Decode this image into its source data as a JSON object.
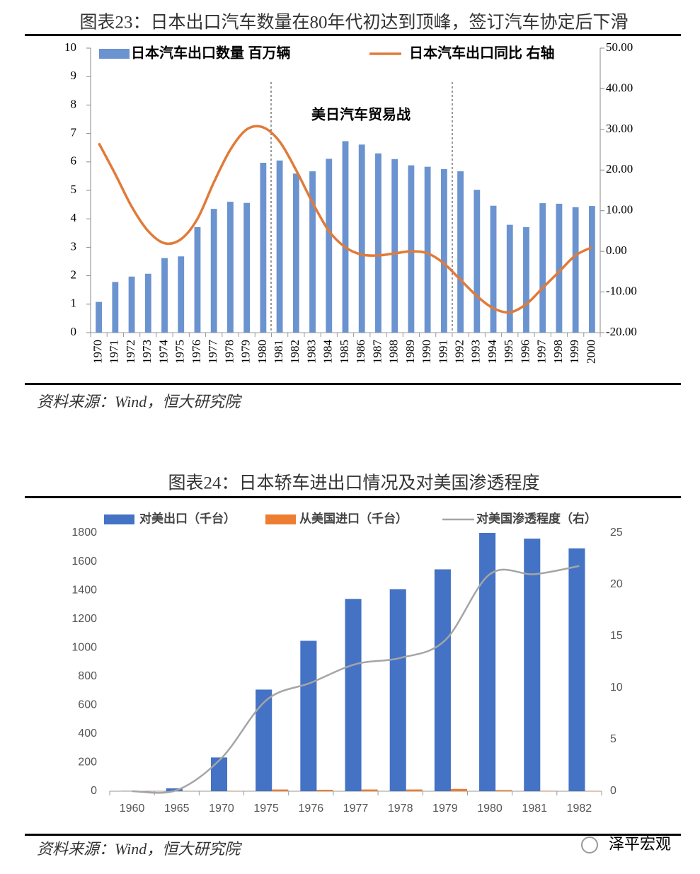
{
  "chart_data": [
    {
      "type": "bar",
      "title": "图表23：日本出口汽车数量在80年代初达到顶峰，签订汽车协定后下滑",
      "categories": [
        "1970",
        "1971",
        "1972",
        "1973",
        "1974",
        "1975",
        "1976",
        "1977",
        "1978",
        "1979",
        "1980",
        "1981",
        "1982",
        "1983",
        "1984",
        "1985",
        "1986",
        "1987",
        "1988",
        "1989",
        "1990",
        "1991",
        "1992",
        "1993",
        "1994",
        "1995",
        "1996",
        "1997",
        "1998",
        "1999",
        "2000"
      ],
      "series": [
        {
          "name": "日本汽车出口数量   百万辆",
          "type": "bar",
          "color": "#6b93cf",
          "values": [
            1.08,
            1.78,
            1.97,
            2.07,
            2.62,
            2.68,
            3.71,
            4.35,
            4.6,
            4.56,
            5.97,
            6.05,
            5.59,
            5.67,
            6.11,
            6.73,
            6.61,
            6.3,
            6.1,
            5.88,
            5.83,
            5.75,
            5.67,
            5.02,
            4.46,
            3.79,
            3.71,
            4.55,
            4.53,
            4.41,
            4.45
          ]
        },
        {
          "name": "日本汽车出口同比   右轴",
          "type": "line",
          "axis": "y2",
          "color": "#e07b39",
          "values": [
            26.6,
            19,
            11,
            5,
            2,
            3,
            8,
            17,
            25,
            30,
            30.5,
            27,
            20,
            12,
            5,
            1,
            -0.8,
            -1,
            -0.5,
            0,
            -0.5,
            -3,
            -7,
            -11,
            -14,
            -15,
            -13,
            -9,
            -5,
            -1,
            1
          ]
        }
      ],
      "ylim": [
        0,
        10
      ],
      "yticks": [
        0,
        1,
        2,
        3,
        4,
        5,
        6,
        7,
        8,
        9,
        10
      ],
      "y2lim": [
        -20,
        50
      ],
      "y2ticks": [
        {
          "value": -20,
          "label": "-20.00"
        },
        {
          "value": -10,
          "label": "-10.00"
        },
        {
          "value": 0,
          "label": "0.00"
        },
        {
          "value": 10,
          "label": "10.00"
        },
        {
          "value": 20,
          "label": "20.00"
        },
        {
          "value": 30,
          "label": "30.00"
        },
        {
          "value": 40,
          "label": "40.00"
        },
        {
          "value": 50,
          "label": "50.00"
        }
      ],
      "annotation": "美日汽车贸易战",
      "source": "资料来源：Wind，恒大研究院"
    },
    {
      "type": "bar",
      "title": "图表24：日本轿车进出口情况及对美国渗透程度",
      "categories": [
        "1960",
        "1965",
        "1970",
        "1975",
        "1976",
        "1977",
        "1978",
        "1979",
        "1980",
        "1981",
        "1982"
      ],
      "series": [
        {
          "name": "对美出口（千台）",
          "type": "bar",
          "color": "#4472c4",
          "values": [
            2,
            20,
            235,
            708,
            1048,
            1340,
            1408,
            1546,
            1800,
            1760,
            1692
          ]
        },
        {
          "name": "从美国进口（千台）",
          "type": "bar",
          "color": "#ed7d31",
          "values": [
            1,
            1,
            2,
            12,
            10,
            12,
            12,
            16,
            8,
            3,
            2
          ]
        },
        {
          "name": "对美国渗透程度（右）",
          "type": "line",
          "axis": "y2",
          "color": "#a5a5a5",
          "values": [
            0,
            0.1,
            3.2,
            8.8,
            10.5,
            12.3,
            12.9,
            14.6,
            21,
            21,
            21.8
          ]
        }
      ],
      "ylim": [
        0,
        1800
      ],
      "yticks": [
        0,
        200,
        400,
        600,
        800,
        1000,
        1200,
        1400,
        1600,
        1800
      ],
      "y2lim": [
        0,
        25
      ],
      "y2ticks": [
        0,
        5,
        10,
        15,
        20,
        25
      ],
      "source": "资料来源：Wind，恒大研究院"
    }
  ],
  "watermark": "泽平宏观"
}
